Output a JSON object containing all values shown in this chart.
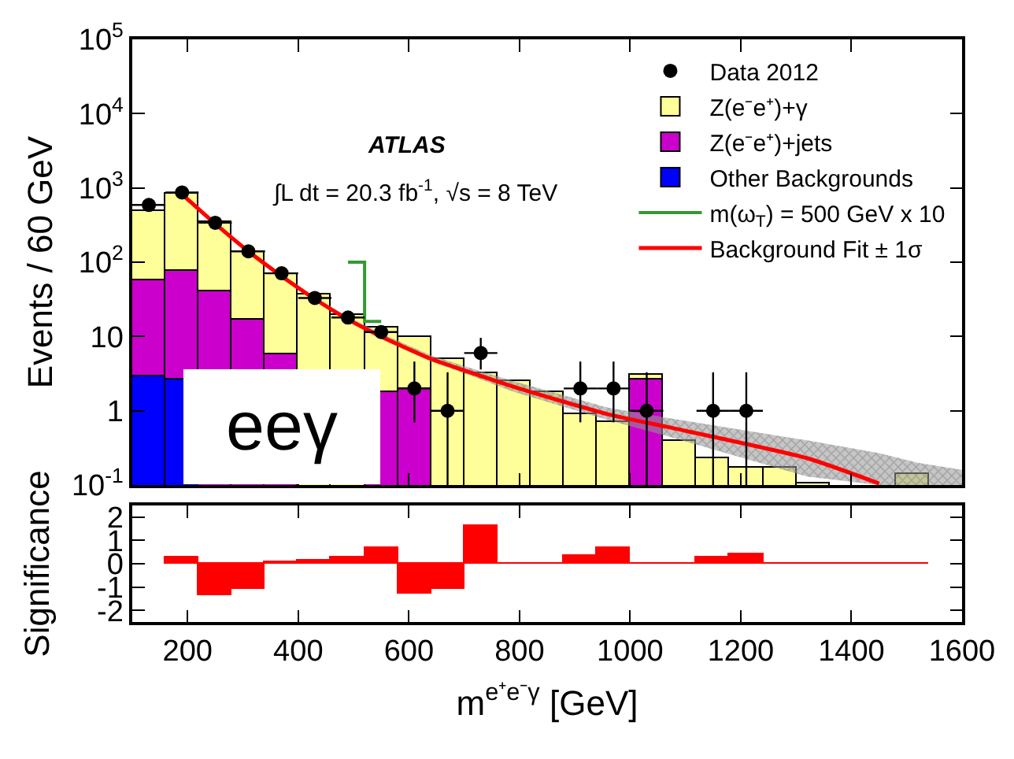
{
  "chart_data": [
    {
      "type": "bar",
      "stacked": true,
      "log": true,
      "legend": "top right",
      "tick_labels": "y",
      "ylabel": "Events / 60 GeV",
      "annotations": [
        "ATLAS",
        "∫L dt = 20.3 fb$^{-1}$, √s = 8 TeV",
        "eeγ"
      ],
      "x": [
        130,
        190,
        250,
        310,
        370,
        430,
        490,
        550,
        610,
        670,
        730,
        790,
        850,
        910,
        970,
        1030,
        1090,
        1150,
        1210,
        1270,
        1330,
        1390,
        1450,
        1510
      ],
      "xlim": [
        100,
        1600
      ],
      "xticks": [
        200,
        400,
        600,
        800,
        1000,
        1200,
        1400,
        1600
      ],
      "ylim": [
        0.1,
        100000
      ],
      "yticks": [
        {
          "value": 0.1,
          "label": "10$^{-1}$"
        },
        1,
        10,
        {
          "value": 100,
          "label": "10$^{2}$"
        },
        {
          "value": 1000,
          "label": "10$^{3}$"
        },
        {
          "value": 10000,
          "label": "10$^{4}$"
        },
        {
          "value": 100000,
          "label": "10$^{5}$"
        }
      ],
      "series": [
        {
          "name": "Data 2012",
          "type": "scatter",
          "marker": "circle",
          "color": "#000000",
          "values": [
            590,
            870,
            340,
            140,
            71,
            33,
            18,
            11.5,
            2,
            1,
            6,
            null,
            null,
            2,
            2,
            1,
            null,
            1,
            1,
            null,
            null,
            null,
            null,
            null
          ],
          "errors": [
            null,
            null,
            null,
            null,
            null,
            null,
            null,
            null,
            [
              0.7,
              4.6
            ],
            [
              0.1,
              3.3
            ],
            [
              3.6,
              9.6
            ],
            null,
            null,
            [
              0.7,
              4.6
            ],
            [
              0.7,
              4.6
            ],
            [
              0.1,
              3.3
            ],
            null,
            [
              0.1,
              3.3
            ],
            [
              0.1,
              3.3
            ],
            null,
            null,
            null,
            null,
            null
          ],
          "xerrors": [
            30,
            30,
            30,
            30,
            30,
            30,
            30,
            30,
            30,
            30,
            30,
            null,
            null,
            30,
            30,
            30,
            null,
            30,
            30,
            null,
            null,
            null,
            null,
            null
          ]
        },
        {
          "name": "Other Backgrounds",
          "type": "bar",
          "color": "#0000ff",
          "values": [
            2.9,
            2.7,
            null,
            null,
            null,
            null,
            null,
            null,
            null,
            null,
            null,
            null,
            null,
            null,
            null,
            null,
            null,
            null,
            null,
            null,
            null,
            null,
            null,
            null
          ]
        },
        {
          "name": "Z(e⁻e⁺)+jets",
          "type": "bar",
          "color": "#cc00cc",
          "values": [
            54,
            73,
            40,
            17,
            5.8,
            null,
            null,
            1.8,
            2.0,
            null,
            null,
            null,
            null,
            null,
            null,
            2.7,
            null,
            null,
            null,
            null,
            null,
            null,
            null,
            null
          ]
        },
        {
          "name": "Z(e⁻e⁺)+γ",
          "type": "bar",
          "color": "#ffff99",
          "values": [
            433,
            764,
            300,
            123,
            64,
            36,
            20,
            11.2,
            8,
            5,
            3.2,
            2.5,
            1.8,
            0.9,
            0.7,
            0.4,
            0.4,
            0.23,
            0.17,
            0.17,
            0.105,
            null,
            null,
            0.14
          ]
        },
        {
          "name": "m(ω$_{T}$) = 500 GeV x 10",
          "type": "step",
          "color": "#339933",
          "values": [
            null,
            null,
            null,
            null,
            null,
            null,
            100,
            16,
            null,
            null,
            null,
            null,
            null,
            null,
            null,
            null,
            null,
            null,
            null,
            null,
            null,
            null,
            null,
            null
          ]
        },
        {
          "name": "Background Fit ± 1σ",
          "type": "line",
          "color": "#ff0000",
          "x": [
            190,
            250,
            310,
            370,
            430,
            490,
            550,
            640,
            700,
            790,
            960,
            1070,
            1320,
            1450,
            1520,
            1600
          ],
          "values": [
            820,
            330,
            140,
            65,
            32,
            17,
            10,
            5,
            3.5,
            2.1,
            0.9,
            0.6,
            0.23,
            0.105,
            null,
            null
          ],
          "lower": [
            780,
            310,
            130,
            60,
            30,
            16,
            9.3,
            4.6,
            3.2,
            1.8,
            0.75,
            0.45,
            0.13,
            0.1,
            0.1,
            0.1
          ],
          "upper": [
            870,
            350,
            150,
            70,
            34,
            18.5,
            11,
            5.6,
            4,
            2.5,
            1.1,
            0.8,
            0.4,
            0.27,
            0.2,
            0.16
          ]
        }
      ]
    },
    {
      "type": "bar",
      "xlabel": "m$^{e⁺e⁻γ}$ [GeV]",
      "ylabel": "Significance",
      "color": "#ff0000",
      "x": [
        190,
        250,
        310,
        370,
        430,
        490,
        550,
        610,
        670,
        730,
        790,
        850,
        910,
        970,
        1030,
        1090,
        1150,
        1210,
        1270,
        1330,
        1390,
        1450,
        1510
      ],
      "values": [
        0.28,
        -1.37,
        -1.07,
        0.07,
        0.13,
        0.3,
        0.68,
        -1.26,
        -1.11,
        1.61,
        0,
        0,
        0.37,
        0.65,
        0,
        0,
        0.26,
        0.43,
        0,
        0,
        0,
        0,
        0
      ],
      "xlim": [
        100,
        1600
      ],
      "xticks": [
        200,
        400,
        600,
        800,
        1000,
        1200,
        1400,
        1600
      ],
      "ylim": [
        -2.5,
        2.5
      ],
      "yticks": [
        -2,
        -1,
        0,
        1,
        2
      ]
    }
  ]
}
